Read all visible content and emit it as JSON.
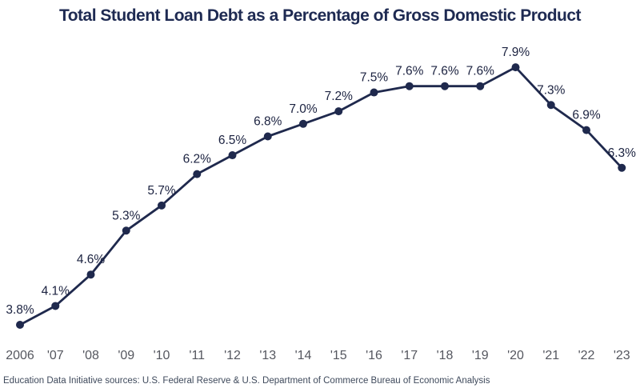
{
  "title": "Total Student Loan Debt as a Percentage of Gross Domestic Product",
  "source_note": "Education Data Initiative sources: U.S. Federal Reserve & U.S. Department of Commerce Bureau of Economic Analysis",
  "colors": {
    "line": "#1f294d",
    "marker": "#1f294d",
    "title": "#1e2a52",
    "value_labels": "#1b2240",
    "axis_labels": "#55575f",
    "source_text": "#3f4a5c",
    "background": "#ffffff"
  },
  "chart_data": {
    "type": "line",
    "title": "Total Student Loan Debt as a Percentage of Gross Domestic Product",
    "xlabel": "",
    "ylabel": "",
    "categories": [
      "2006",
      "'07",
      "'08",
      "'09",
      "'10",
      "'11",
      "'12",
      "'13",
      "'14",
      "'15",
      "'16",
      "'17",
      "'18",
      "'19",
      "'20",
      "'21",
      "'22",
      "'23"
    ],
    "values": [
      3.8,
      4.1,
      4.6,
      5.3,
      5.7,
      6.2,
      6.5,
      6.8,
      7.0,
      7.2,
      7.5,
      7.6,
      7.6,
      7.6,
      7.9,
      7.3,
      6.9,
      6.3
    ],
    "point_labels": [
      "3.8%",
      "4.1%",
      "4.6%",
      "5.3%",
      "5.7%",
      "6.2%",
      "6.5%",
      "6.8%",
      "7.0%",
      "7.2%",
      "7.5%",
      "7.6%",
      "7.6%",
      "7.6%",
      "7.9%",
      "7.3%",
      "6.9%",
      "6.3%"
    ],
    "ylim": [
      3.5,
      8.2
    ],
    "grid": false,
    "legend": "none",
    "markers": true,
    "data_labels": "above points",
    "x_axis_labels": "bottom, no axis line"
  }
}
